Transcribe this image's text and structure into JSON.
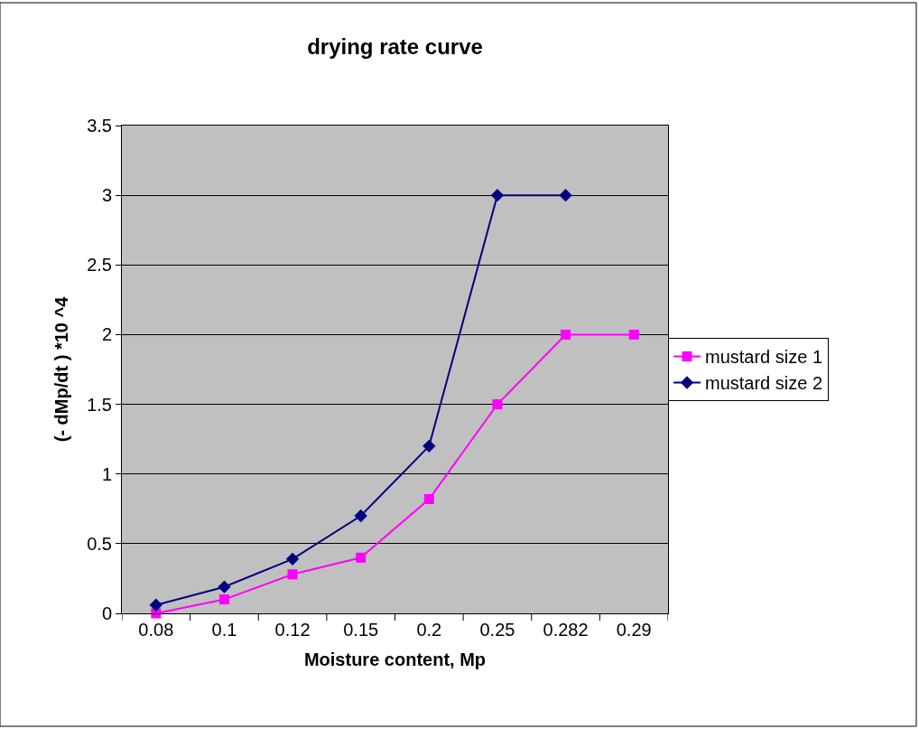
{
  "chart_data": {
    "type": "line",
    "title": "drying rate curve",
    "xlabel": "Moisture content, Mp",
    "ylabel": "(- dMp/dt ) *10 ^4",
    "categories": [
      "0.08",
      "0.1",
      "0.12",
      "0.15",
      "0.2",
      "0.25",
      "0.282",
      "0.29"
    ],
    "series": [
      {
        "name": "mustard size 1",
        "color": "#ff00ff",
        "marker": "square",
        "values": [
          0,
          0.1,
          0.28,
          0.4,
          0.82,
          1.5,
          2,
          2
        ]
      },
      {
        "name": "mustard size 2",
        "color": "#000080",
        "marker": "diamond",
        "values": [
          0.06,
          0.19,
          0.39,
          0.7,
          1.2,
          3,
          3,
          null
        ]
      }
    ],
    "ylim": [
      0,
      3.5
    ],
    "yticks": [
      0,
      0.5,
      1,
      1.5,
      2,
      2.5,
      3,
      3.5
    ],
    "grid": "y",
    "legend": "right",
    "line_style": "solid"
  }
}
